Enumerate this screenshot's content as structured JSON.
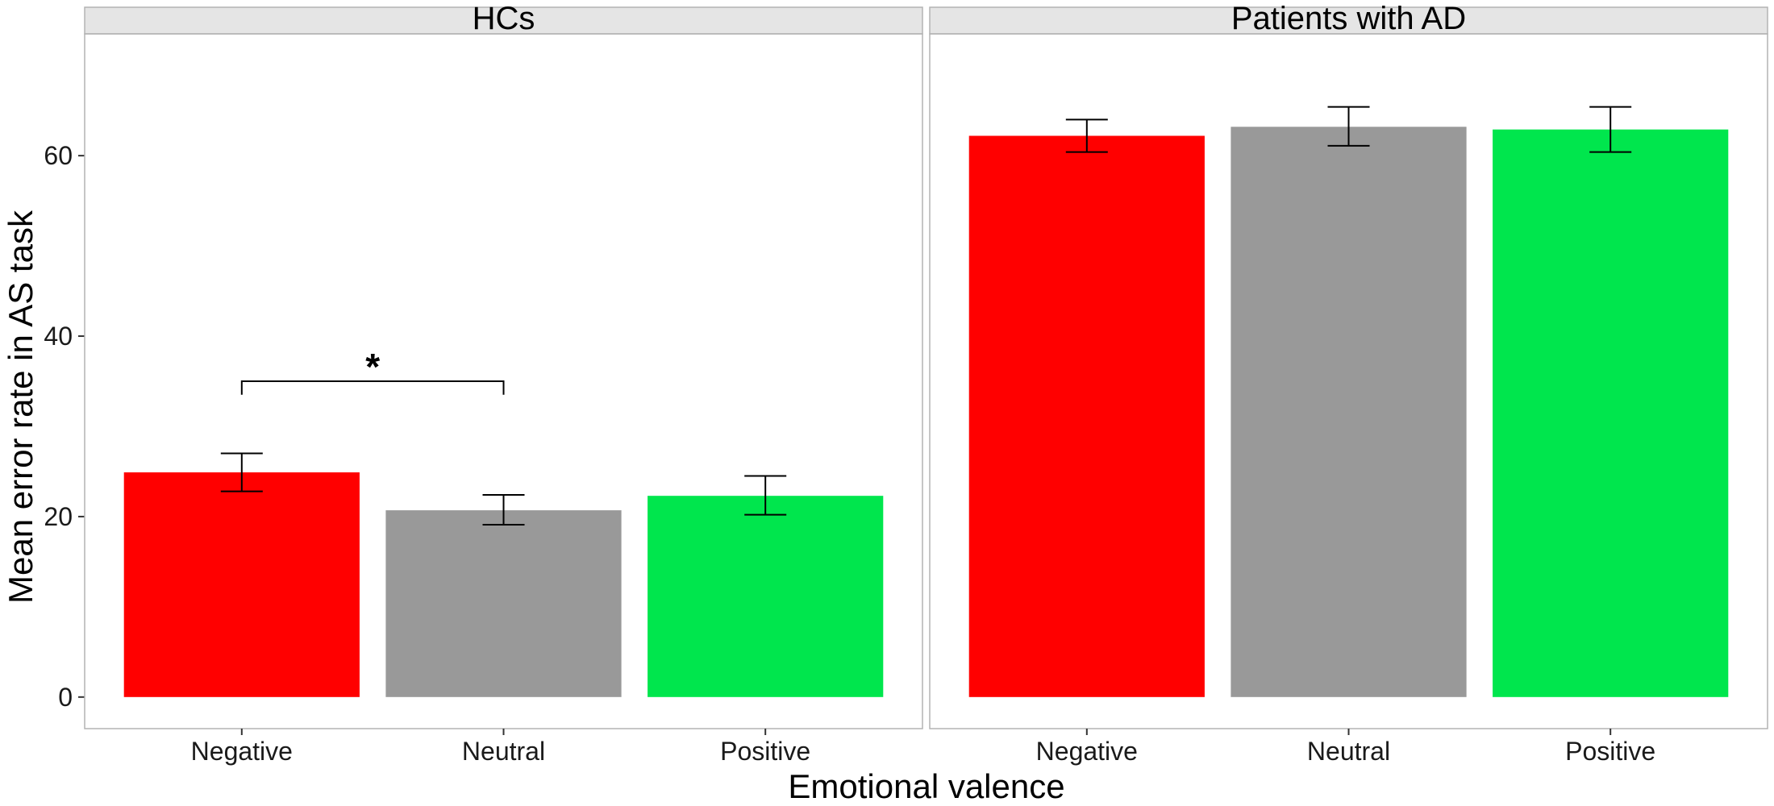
{
  "chart_data": {
    "type": "bar",
    "xlabel": "Emotional valence",
    "ylabel": "Mean error rate in AS task",
    "ylim": [
      -3.5,
      73.5
    ],
    "yticks": [
      0,
      20,
      40,
      60
    ],
    "categories": [
      "Negative",
      "Neutral",
      "Positive"
    ],
    "colors": [
      "#ff0000",
      "#999999",
      "#00e64d"
    ],
    "grid": false,
    "panels": [
      {
        "title": "HCs",
        "values": [
          24.9,
          20.7,
          22.3
        ],
        "error_low": [
          22.8,
          19.1,
          20.2
        ],
        "error_high": [
          27.0,
          22.4,
          24.5
        ],
        "significance": {
          "from": "Negative",
          "to": "Neutral",
          "label": "*",
          "y": 35.0,
          "tick_bottom": 33.5
        }
      },
      {
        "title": "Patients with AD",
        "values": [
          62.2,
          63.2,
          62.9
        ],
        "error_low": [
          60.4,
          61.1,
          60.4
        ],
        "error_high": [
          64.0,
          65.4,
          65.4
        ]
      }
    ]
  }
}
